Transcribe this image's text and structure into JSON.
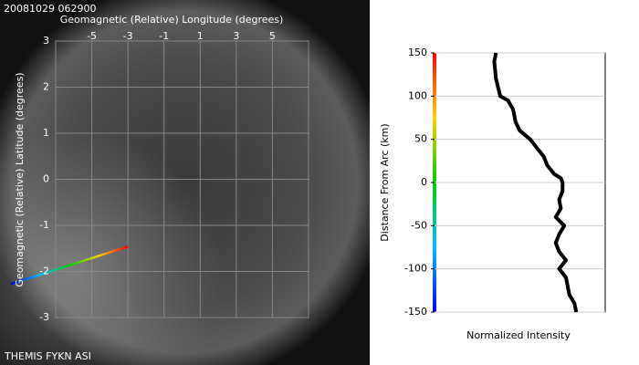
{
  "chart_data": [
    {
      "type": "line",
      "title": "20081029 062900",
      "footer": "THEMIS FYKN ASI",
      "xlabel": "Geomagnetic (Relative) Longitude (degrees)",
      "ylabel": "Geomagnetic (Relative) Latitude (degrees)",
      "xlim": [
        -7,
        7
      ],
      "ylim": [
        -3,
        3
      ],
      "xticks": [
        -5,
        -3,
        -1,
        1,
        3,
        5
      ],
      "yticks": [
        -3,
        -2,
        -1,
        0,
        1,
        2,
        3
      ],
      "grid": true,
      "series": [
        {
          "color": "rainbow",
          "x": [
            -9.5,
            -3
          ],
          "values": [
            -2.27,
            -1.46
          ]
        }
      ]
    },
    {
      "type": "line",
      "orientation": "horizontal",
      "xlabel": "Normalized Intensity",
      "ylabel": "Distance From Arc (km)",
      "xlim": [
        0,
        1
      ],
      "ylim": [
        -150,
        150
      ],
      "yticks": [
        -150,
        -100,
        -50,
        0,
        50,
        100,
        150
      ],
      "grid": true,
      "series": [
        {
          "color": "#000000",
          "y": [
            150,
            140,
            120,
            100,
            95,
            85,
            70,
            60,
            50,
            40,
            30,
            20,
            10,
            5,
            0,
            -10,
            -20,
            -30,
            -40,
            -50,
            -60,
            -70,
            -80,
            -90,
            -100,
            -110,
            -120,
            -130,
            -140,
            -150
          ],
          "values": [
            0.36,
            0.35,
            0.36,
            0.385,
            0.43,
            0.46,
            0.475,
            0.5,
            0.56,
            0.6,
            0.64,
            0.66,
            0.7,
            0.74,
            0.75,
            0.75,
            0.73,
            0.74,
            0.71,
            0.76,
            0.73,
            0.71,
            0.73,
            0.77,
            0.73,
            0.77,
            0.78,
            0.79,
            0.82,
            0.83
          ]
        }
      ]
    }
  ]
}
